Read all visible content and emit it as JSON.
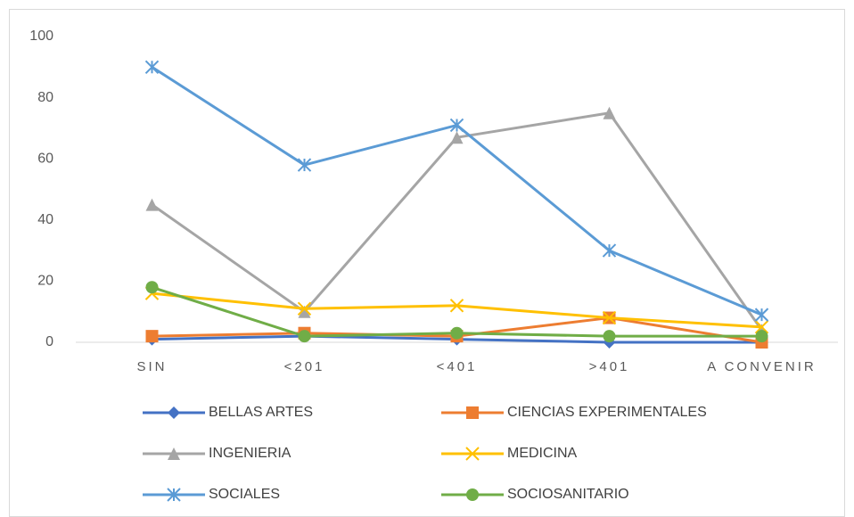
{
  "chart_data": {
    "type": "line",
    "categories": [
      "SIN",
      "<201",
      "<401",
      ">401",
      "A CONVENIR"
    ],
    "series": [
      {
        "name": "BELLAS ARTES",
        "color": "#4472c4",
        "marker": "diamond",
        "values": [
          1,
          2,
          1,
          0,
          0
        ]
      },
      {
        "name": "CIENCIAS EXPERIMENTALES",
        "color": "#ed7d31",
        "marker": "square",
        "values": [
          2,
          3,
          2,
          8,
          0
        ]
      },
      {
        "name": "INGENIERIA",
        "color": "#a5a5a5",
        "marker": "triangle",
        "values": [
          45,
          10,
          67,
          75,
          4
        ]
      },
      {
        "name": "MEDICINA",
        "color": "#ffc000",
        "marker": "x",
        "values": [
          16,
          11,
          12,
          8,
          5
        ]
      },
      {
        "name": "SOCIALES",
        "color": "#5b9bd5",
        "marker": "star",
        "values": [
          90,
          58,
          71,
          30,
          9
        ]
      },
      {
        "name": "SOCIOSANITARIO",
        "color": "#70ad47",
        "marker": "circle",
        "values": [
          18,
          2,
          3,
          2,
          2
        ]
      }
    ],
    "ylim": [
      0,
      100
    ],
    "yticks": [
      0,
      20,
      40,
      60,
      80,
      100
    ],
    "grid": false,
    "legend": "bottom"
  }
}
